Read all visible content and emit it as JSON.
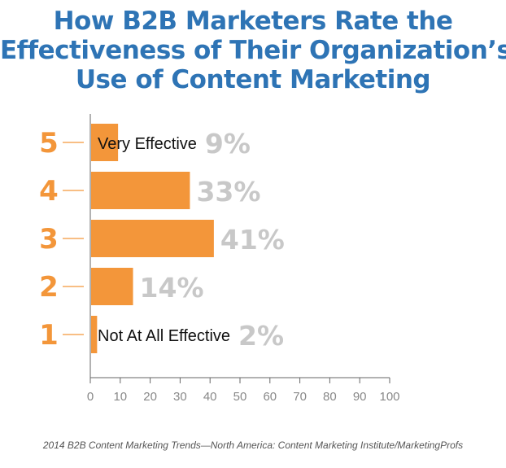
{
  "title_lines": [
    "How B2B Marketers Rate the",
    "Effectiveness of Their Organization’s",
    "Use of Content Marketing"
  ],
  "source": "2014 B2B Content Marketing Trends—North America: Content Marketing Institute/MarketingProfs",
  "colors": {
    "title": "#2e74b5",
    "bar": "#f3963a",
    "rating_label": "#f3963a",
    "value_label": "#c8c8c8",
    "axis": "#666666",
    "tick_label": "#888888"
  },
  "chart_data": {
    "type": "bar",
    "orientation": "horizontal",
    "categories": [
      "5",
      "4",
      "3",
      "2",
      "1"
    ],
    "values": [
      9,
      33,
      41,
      14,
      2
    ],
    "value_labels": [
      "9%",
      "33%",
      "41%",
      "14%",
      "2%"
    ],
    "bar_annotations": [
      "Very Effective",
      "",
      "",
      "",
      "Not At All Effective"
    ],
    "xlim": [
      0,
      100
    ],
    "xticks": [
      0,
      10,
      20,
      30,
      40,
      50,
      60,
      70,
      80,
      90,
      100
    ],
    "grid": false
  }
}
